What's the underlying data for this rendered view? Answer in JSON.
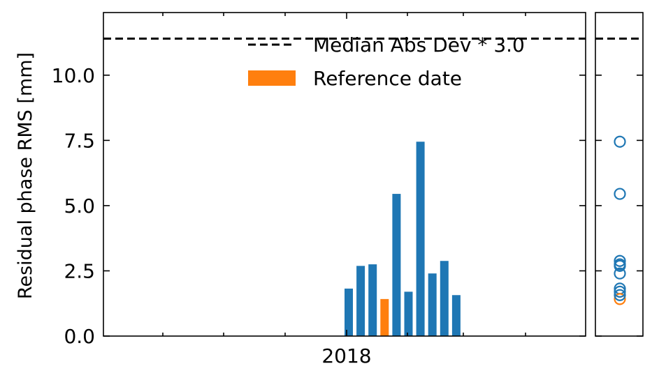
{
  "chart_data": {
    "type": "bar",
    "ylabel": "Residual phase RMS [mm]",
    "xlabel": "",
    "ylim": [
      0,
      12.4
    ],
    "yticks": [
      0.0,
      2.5,
      5.0,
      7.5,
      10.0
    ],
    "ytick_labels": [
      "0.0",
      "2.5",
      "5.0",
      "7.5",
      "10.0"
    ],
    "xtick_label": "2018",
    "threshold": {
      "value": 11.4,
      "label": "Median Abs Dev * 3.0",
      "style": "dashed",
      "color": "#000000"
    },
    "legend": {
      "placement": "top-right",
      "entries": [
        {
          "label": "Median Abs Dev * 3.0",
          "kind": "dashed-line",
          "color": "#000000"
        },
        {
          "label": "Reference date",
          "kind": "patch",
          "color": "#ff7f0e"
        }
      ]
    },
    "bars": [
      {
        "value": 1.82,
        "reference": false
      },
      {
        "value": 2.69,
        "reference": false
      },
      {
        "value": 2.75,
        "reference": false
      },
      {
        "value": 1.42,
        "reference": true
      },
      {
        "value": 5.45,
        "reference": false
      },
      {
        "value": 1.7,
        "reference": false
      },
      {
        "value": 7.45,
        "reference": false
      },
      {
        "value": 2.4,
        "reference": false
      },
      {
        "value": 2.88,
        "reference": false
      },
      {
        "value": 1.57,
        "reference": false
      }
    ],
    "colors": {
      "normal": "#1f77b4",
      "reference": "#ff7f0e"
    },
    "side_panel": {
      "type": "scatter",
      "marker": "open-circle"
    },
    "grid": false
  }
}
